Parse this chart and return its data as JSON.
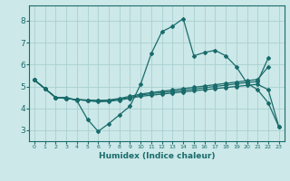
{
  "title": "",
  "xlabel": "Humidex (Indice chaleur)",
  "xlim": [
    -0.5,
    23.5
  ],
  "ylim": [
    2.5,
    8.7
  ],
  "xticks": [
    0,
    1,
    2,
    3,
    4,
    5,
    6,
    7,
    8,
    9,
    10,
    11,
    12,
    13,
    14,
    15,
    16,
    17,
    18,
    19,
    20,
    21,
    22,
    23
  ],
  "yticks": [
    3,
    4,
    5,
    6,
    7,
    8
  ],
  "bg_color": "#cce8e8",
  "grid_color": "#aacfcf",
  "line_color": "#1a6b6b",
  "line1_x": [
    0,
    1,
    2,
    3,
    4,
    5,
    6,
    7,
    8,
    9,
    10,
    11,
    12,
    13,
    14,
    15,
    16,
    17,
    18,
    19,
    20,
    21,
    22,
    23
  ],
  "line1_y": [
    5.3,
    4.9,
    4.5,
    4.5,
    4.35,
    3.5,
    2.95,
    3.3,
    3.7,
    4.1,
    5.1,
    6.5,
    7.5,
    7.75,
    8.1,
    6.4,
    6.55,
    6.65,
    6.4,
    5.9,
    5.15,
    4.85,
    4.25,
    3.15
  ],
  "line2_x": [
    0,
    1,
    2,
    3,
    4,
    5,
    6,
    7,
    8,
    9,
    10,
    11,
    12,
    13,
    14,
    15,
    16,
    17,
    18,
    19,
    20,
    21,
    22
  ],
  "line2_y": [
    5.3,
    4.9,
    4.5,
    4.45,
    4.4,
    4.38,
    4.36,
    4.38,
    4.45,
    4.55,
    4.65,
    4.72,
    4.78,
    4.84,
    4.9,
    4.96,
    5.02,
    5.08,
    5.14,
    5.2,
    5.26,
    5.32,
    5.9
  ],
  "line3_x": [
    0,
    1,
    2,
    3,
    4,
    5,
    6,
    7,
    8,
    9,
    10,
    11,
    12,
    13,
    14,
    15,
    16,
    17,
    18,
    19,
    20,
    21,
    22
  ],
  "line3_y": [
    5.3,
    4.9,
    4.5,
    4.45,
    4.4,
    4.37,
    4.34,
    4.36,
    4.42,
    4.5,
    4.6,
    4.67,
    4.72,
    4.77,
    4.82,
    4.88,
    4.94,
    5.0,
    5.06,
    5.12,
    5.18,
    5.22,
    6.3
  ],
  "line4_x": [
    0,
    1,
    2,
    3,
    4,
    5,
    6,
    7,
    8,
    9,
    10,
    11,
    12,
    13,
    14,
    15,
    16,
    17,
    18,
    19,
    20,
    21,
    22,
    23
  ],
  "line4_y": [
    5.3,
    4.9,
    4.5,
    4.45,
    4.4,
    4.35,
    4.3,
    4.32,
    4.38,
    4.46,
    4.55,
    4.6,
    4.65,
    4.7,
    4.75,
    4.8,
    4.85,
    4.9,
    4.95,
    5.0,
    5.05,
    5.1,
    4.85,
    3.15
  ]
}
